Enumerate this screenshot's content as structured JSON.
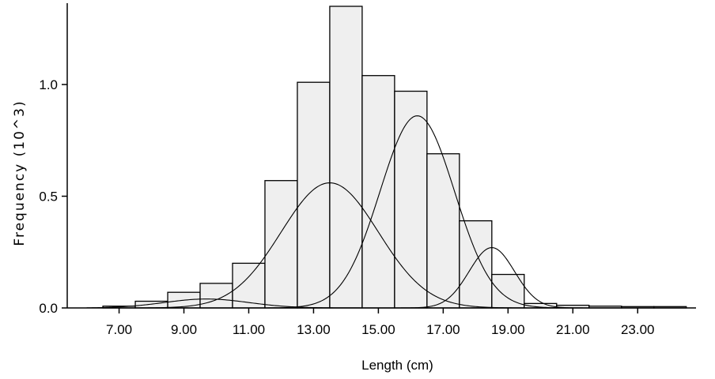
{
  "chart_data": {
    "type": "bar",
    "title": "",
    "xlabel": "Length (cm)",
    "ylabel": "Frequency (10^3)",
    "xlim": [
      6.5,
      24.8
    ],
    "ylim": [
      0,
      1.35
    ],
    "x_ticks": [
      "7.00",
      "9.00",
      "11.00",
      "13.00",
      "15.00",
      "17.00",
      "19.00",
      "21.00",
      "23.00"
    ],
    "x_tick_values": [
      7,
      9,
      11,
      13,
      15,
      17,
      19,
      21,
      23
    ],
    "y_ticks": [
      "0.0",
      "0.5",
      "1.0"
    ],
    "y_tick_values": [
      0,
      0.5,
      1.0
    ],
    "bins": [
      {
        "from": 6.5,
        "to": 7.5,
        "value": 0.008
      },
      {
        "from": 7.5,
        "to": 8.5,
        "value": 0.03
      },
      {
        "from": 8.5,
        "to": 9.5,
        "value": 0.07
      },
      {
        "from": 9.5,
        "to": 10.5,
        "value": 0.11
      },
      {
        "from": 10.5,
        "to": 11.5,
        "value": 0.2
      },
      {
        "from": 11.5,
        "to": 12.5,
        "value": 0.57
      },
      {
        "from": 12.5,
        "to": 13.5,
        "value": 1.01
      },
      {
        "from": 13.5,
        "to": 14.5,
        "value": 1.35
      },
      {
        "from": 14.5,
        "to": 15.5,
        "value": 1.04
      },
      {
        "from": 15.5,
        "to": 16.5,
        "value": 0.97
      },
      {
        "from": 16.5,
        "to": 17.5,
        "value": 0.69
      },
      {
        "from": 17.5,
        "to": 18.5,
        "value": 0.39
      },
      {
        "from": 18.5,
        "to": 19.5,
        "value": 0.15
      },
      {
        "from": 19.5,
        "to": 20.5,
        "value": 0.02
      },
      {
        "from": 20.5,
        "to": 21.5,
        "value": 0.012
      },
      {
        "from": 21.5,
        "to": 22.5,
        "value": 0.008
      },
      {
        "from": 22.5,
        "to": 23.5,
        "value": 0.006
      },
      {
        "from": 23.5,
        "to": 24.5,
        "value": 0.006
      }
    ],
    "series": [
      {
        "type": "normal-curve",
        "mean": 9.7,
        "sd": 1.3,
        "peak": 0.04
      },
      {
        "type": "normal-curve",
        "mean": 13.5,
        "sd": 1.5,
        "peak": 0.56
      },
      {
        "type": "normal-curve",
        "mean": 16.2,
        "sd": 1.15,
        "peak": 0.86
      },
      {
        "type": "normal-curve",
        "mean": 18.5,
        "sd": 0.7,
        "peak": 0.27
      }
    ],
    "colors": {
      "bar_fill": "#efefef",
      "bar_stroke": "#000000",
      "curve": "#000000",
      "axis": "#000000"
    },
    "grid": false,
    "legend": "none"
  }
}
